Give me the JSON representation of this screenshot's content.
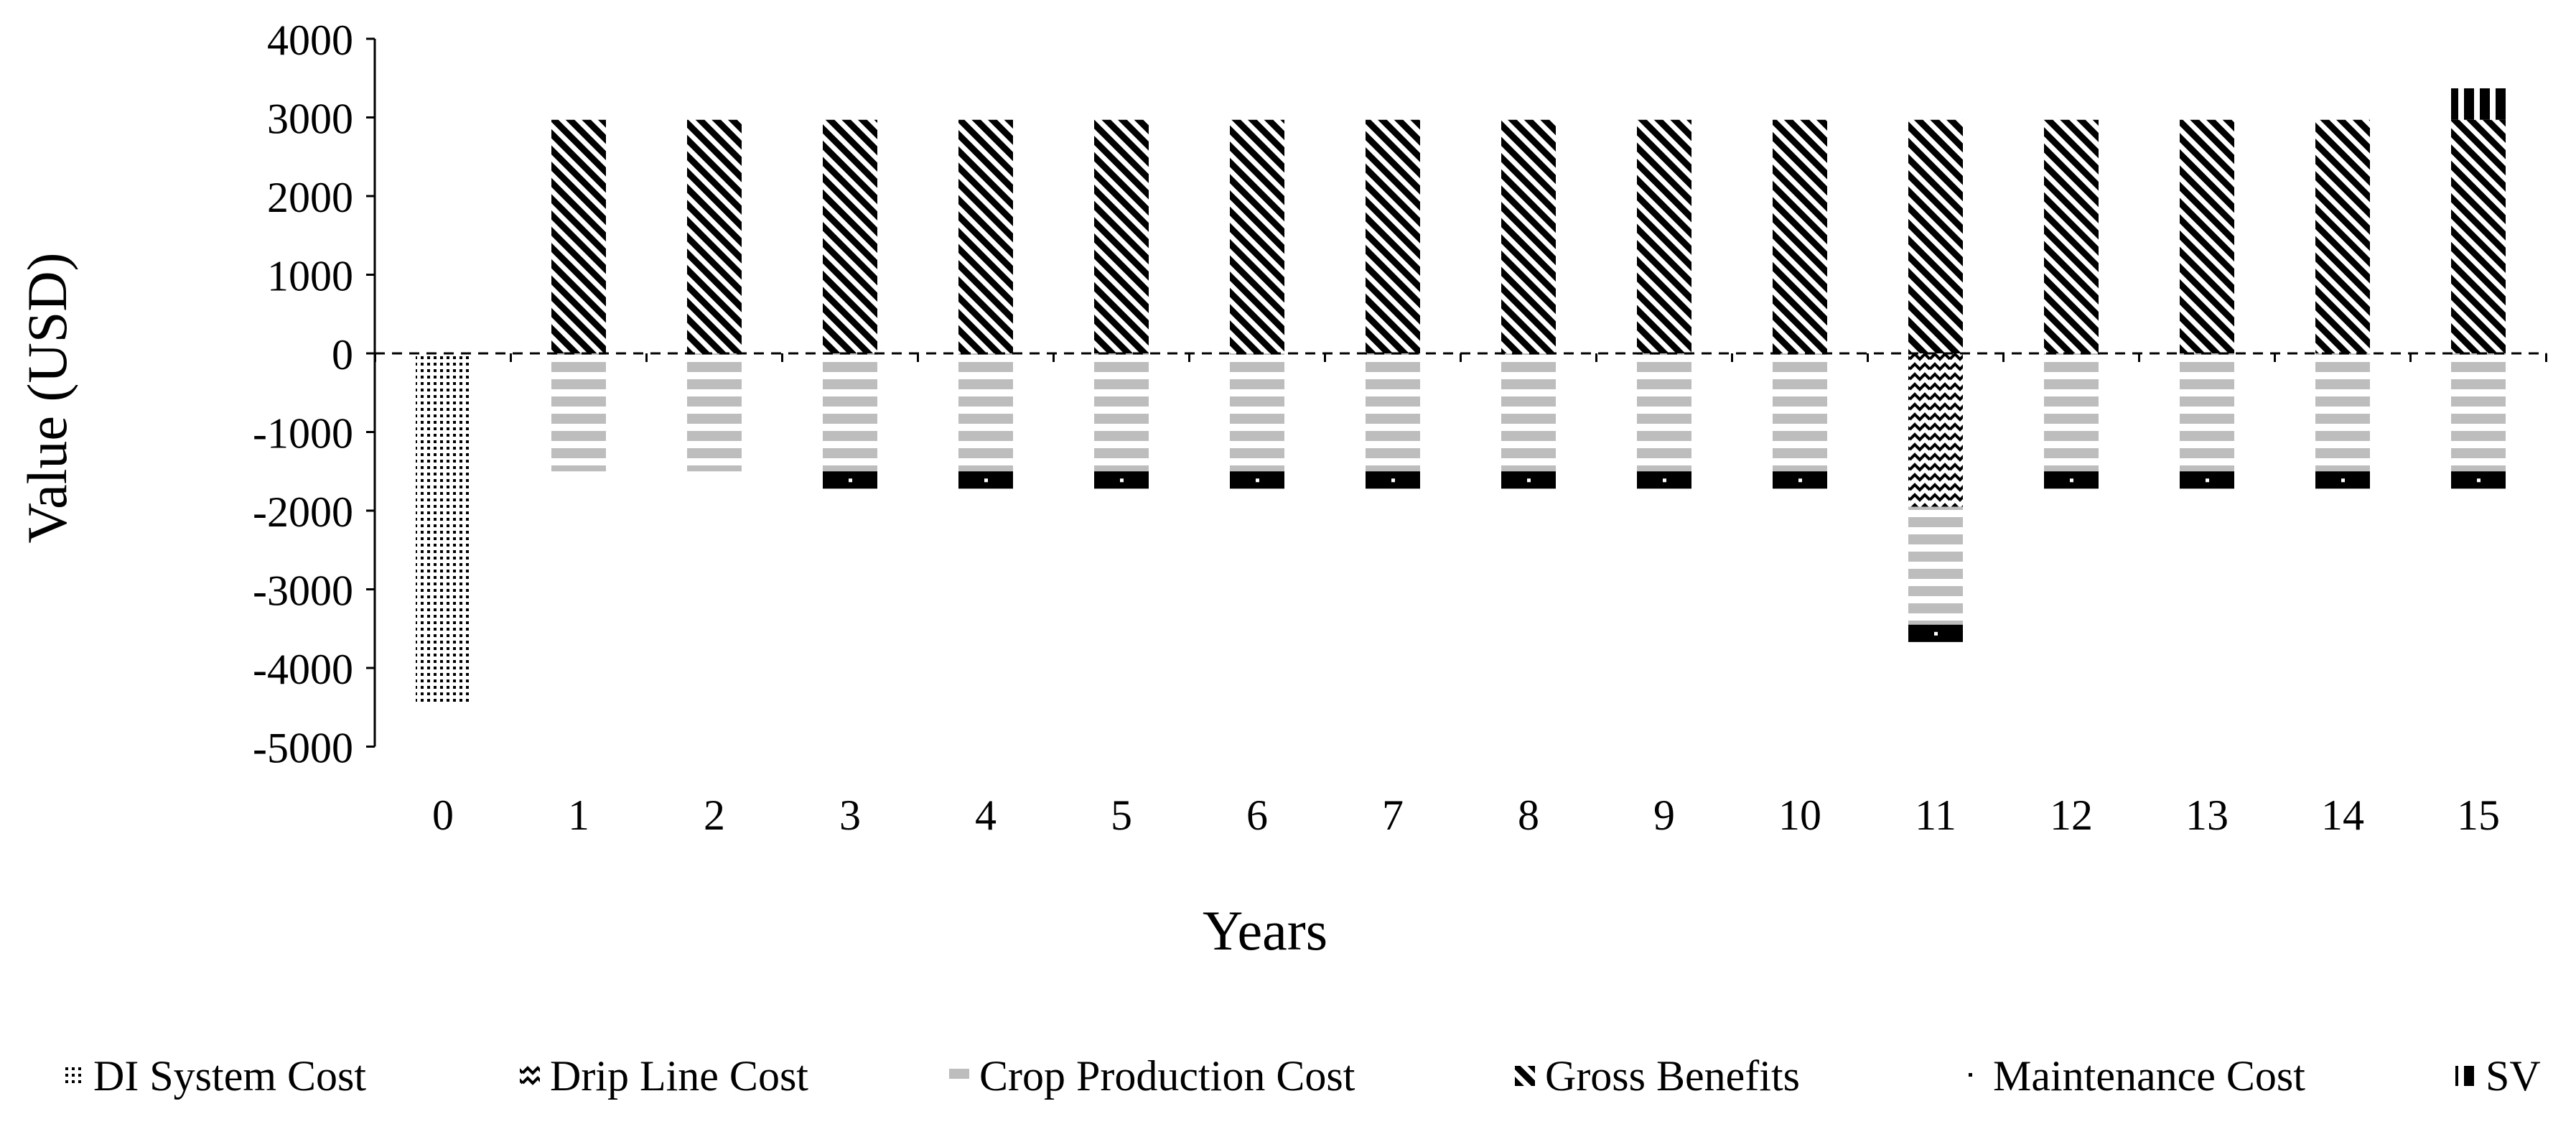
{
  "chart_data": {
    "type": "bar",
    "stacked": true,
    "title": "",
    "xlabel": "Years",
    "ylabel": "Value (USD)",
    "ylim": [
      -5000,
      4000
    ],
    "yticks": [
      4000,
      3000,
      2000,
      1000,
      0,
      -1000,
      -2000,
      -3000,
      -4000,
      -5000
    ],
    "categories": [
      "0",
      "1",
      "2",
      "3",
      "4",
      "5",
      "6",
      "7",
      "8",
      "9",
      "10",
      "11",
      "12",
      "13",
      "14",
      "15"
    ],
    "legend_position": "bottom",
    "series": [
      {
        "name": "DI System Cost",
        "pattern": "dots",
        "values": [
          -4450,
          0,
          0,
          0,
          0,
          0,
          0,
          0,
          0,
          0,
          0,
          0,
          0,
          0,
          0,
          0
        ]
      },
      {
        "name": "Drip Line Cost",
        "pattern": "zigzag",
        "values": [
          0,
          0,
          0,
          0,
          0,
          0,
          0,
          0,
          0,
          0,
          0,
          -1950,
          0,
          0,
          0,
          0
        ]
      },
      {
        "name": "Crop Production Cost",
        "pattern": "hstripes-gray",
        "values": [
          0,
          -1500,
          -1500,
          -1500,
          -1500,
          -1500,
          -1500,
          -1500,
          -1500,
          -1500,
          -1500,
          -1500,
          -1500,
          -1500,
          -1500,
          -1500
        ]
      },
      {
        "name": "Gross Benefits",
        "pattern": "diagonal",
        "values": [
          0,
          2970,
          2970,
          2970,
          2970,
          2970,
          2970,
          2970,
          2970,
          2970,
          2970,
          2970,
          2970,
          2970,
          2970,
          2970
        ]
      },
      {
        "name": "Maintenance Cost",
        "pattern": "black-dot",
        "values": [
          0,
          0,
          0,
          -220,
          -220,
          -220,
          -220,
          -220,
          -220,
          -220,
          -220,
          -220,
          -220,
          -220,
          -220,
          -220
        ]
      },
      {
        "name": "SV",
        "pattern": "vstripes",
        "values": [
          0,
          0,
          0,
          0,
          0,
          0,
          0,
          0,
          0,
          0,
          0,
          0,
          0,
          0,
          0,
          400
        ]
      }
    ]
  }
}
